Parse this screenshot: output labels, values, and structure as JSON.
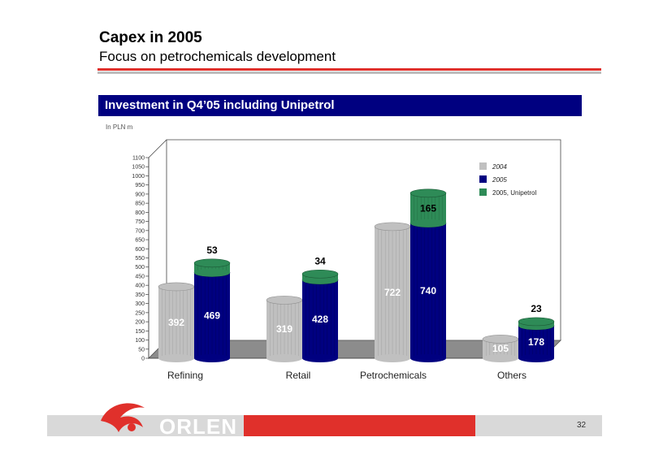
{
  "header": {
    "title": "Capex in 2005",
    "subtitle": "Focus on petrochemicals development"
  },
  "banner": {
    "text": "Investment in Q4’05 including Unipetrol"
  },
  "unit_label": "In PLN m",
  "footer": {
    "logo_text": "ORLEN",
    "page_number": "32"
  },
  "colors": {
    "series_2004": "#c0c0c0",
    "series_2005": "#000080",
    "series_unipetrol": "#2e8b57",
    "accent_red": "#e0302b",
    "banner_blue": "#000080"
  },
  "chart_data": {
    "type": "bar",
    "stacked_second_series": true,
    "categories": [
      "Refining",
      "Retail",
      "Petrochemicals",
      "Others"
    ],
    "series": [
      {
        "name": "2004",
        "values": [
          392,
          319,
          722,
          105
        ]
      },
      {
        "name": "2005",
        "values": [
          469,
          428,
          740,
          178
        ]
      },
      {
        "name": "2005, Unipetrol",
        "values": [
          53,
          34,
          165,
          23
        ]
      }
    ],
    "ylim": [
      0,
      1100
    ],
    "yticks": [
      0,
      50,
      100,
      150,
      200,
      250,
      300,
      350,
      400,
      450,
      500,
      550,
      600,
      650,
      700,
      750,
      800,
      850,
      900,
      950,
      1000,
      1050,
      1100
    ],
    "legend_position": "top-right",
    "grid": false
  }
}
